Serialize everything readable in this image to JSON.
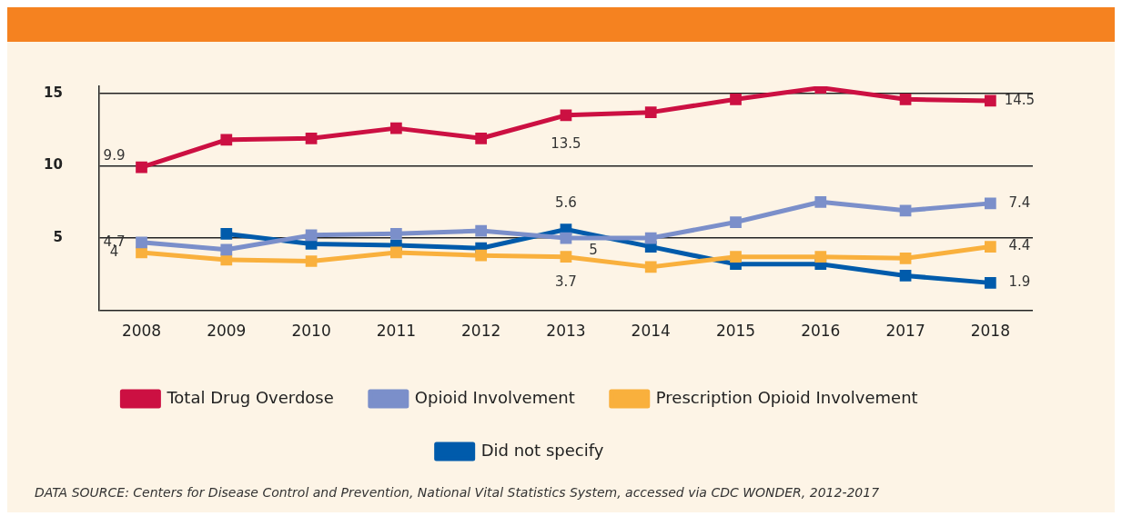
{
  "chart_data": {
    "type": "line",
    "categories": [
      "2008",
      "2009",
      "2010",
      "2011",
      "2012",
      "2013",
      "2014",
      "2015",
      "2016",
      "2017",
      "2018"
    ],
    "series": [
      {
        "name": "Total Drug Overdose",
        "color": "#cc1042",
        "values": [
          9.9,
          11.8,
          11.9,
          12.6,
          11.9,
          13.5,
          13.7,
          14.6,
          15.4,
          14.6,
          14.5
        ],
        "value_labels": [
          "9.9",
          null,
          null,
          null,
          null,
          "13.5",
          null,
          null,
          null,
          null,
          "14.5"
        ]
      },
      {
        "name": "Opioid Involvement",
        "color": "#7b8fca",
        "values": [
          4.7,
          4.2,
          5.2,
          5.3,
          5.5,
          5.0,
          5.0,
          6.1,
          7.5,
          6.9,
          7.4
        ],
        "value_labels": [
          "4.7",
          null,
          null,
          null,
          null,
          "5",
          null,
          null,
          null,
          null,
          "7.4"
        ]
      },
      {
        "name": "Prescription Opioid Involvement",
        "color": "#f9b03d",
        "values": [
          4.0,
          3.5,
          3.4,
          4.0,
          3.8,
          3.7,
          3.0,
          3.7,
          3.7,
          3.6,
          4.4
        ],
        "value_labels": [
          "4",
          null,
          null,
          null,
          null,
          "3.7",
          null,
          null,
          null,
          null,
          "4.4"
        ]
      },
      {
        "name": "Did not specify",
        "color": "#005bab",
        "values": [
          null,
          5.3,
          4.6,
          4.5,
          4.3,
          5.6,
          4.4,
          3.2,
          3.2,
          2.4,
          1.9
        ],
        "value_labels": [
          null,
          null,
          null,
          null,
          null,
          "5.6",
          null,
          null,
          null,
          null,
          "1.9"
        ]
      }
    ],
    "ylim": [
      0,
      15.5
    ],
    "yticks": [
      {
        "value": 0,
        "label": null
      },
      5,
      10,
      15
    ],
    "grid": "y",
    "legend": "bottom",
    "marker": "square",
    "line_style": "solid",
    "annotations": [
      "DATA SOURCE: Centers for Disease Control and Prevention, National Vital Statistics System, accessed via CDC WONDER, 2012-2017"
    ]
  }
}
